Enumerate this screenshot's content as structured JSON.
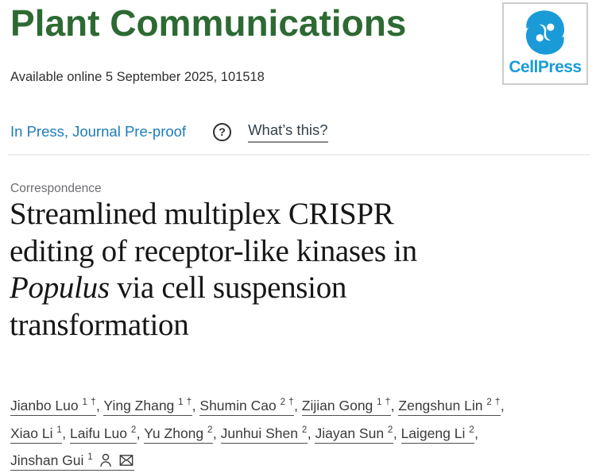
{
  "journal": {
    "name": "Plant Communications",
    "name_color": "#2d6a33",
    "publisher_logo": {
      "label": "CellPress",
      "brand_color": "#1a9bd7",
      "icon": "cellpress-swirl-icon"
    }
  },
  "meta": {
    "available_line": "Available online 5 September 2025, 101518"
  },
  "status_bar": {
    "in_press_label": "In Press, Journal Pre-proof",
    "help_icon_glyph": "?",
    "whats_this_label": "What’s this?"
  },
  "article": {
    "section_label": "Correspondence",
    "title_lines": [
      [
        {
          "text": "Streamlined multiplex CRISPR"
        }
      ],
      [
        {
          "text": "editing of receptor-like kinases in"
        }
      ],
      [
        {
          "text": "Populus",
          "italic": true
        },
        {
          "text": " via cell suspension"
        }
      ],
      [
        {
          "text": "transformation"
        }
      ]
    ],
    "author_lines": [
      [
        {
          "name": "Jianbo Luo",
          "sup": "1 †"
        },
        {
          "name": "Ying Zhang",
          "sup": "1 †"
        },
        {
          "name": "Shumin Cao",
          "sup": "2 †"
        },
        {
          "name": "Zijian Gong",
          "sup": "1 †"
        },
        {
          "name": "Zengshun Lin",
          "sup": "2 †"
        }
      ],
      [
        {
          "name": "Xiao Li",
          "sup": "1"
        },
        {
          "name": "Laifu Luo",
          "sup": "2"
        },
        {
          "name": "Yu Zhong",
          "sup": "2"
        },
        {
          "name": "Junhui Shen",
          "sup": "2"
        },
        {
          "name": "Jiayan Sun",
          "sup": "2"
        },
        {
          "name": "Laigeng Li",
          "sup": "2"
        }
      ],
      [
        {
          "name": "Jinshan Gui",
          "sup": "1",
          "icons": [
            "person-icon",
            "mail-icon"
          ]
        }
      ]
    ],
    "separator": ", "
  },
  "colors": {
    "link_blue": "#1d7cb9",
    "text_dark": "#2f2f2f",
    "muted_gray": "#6e6e72",
    "divider_gray": "#ededed",
    "author_text": "#3b3b3b"
  }
}
